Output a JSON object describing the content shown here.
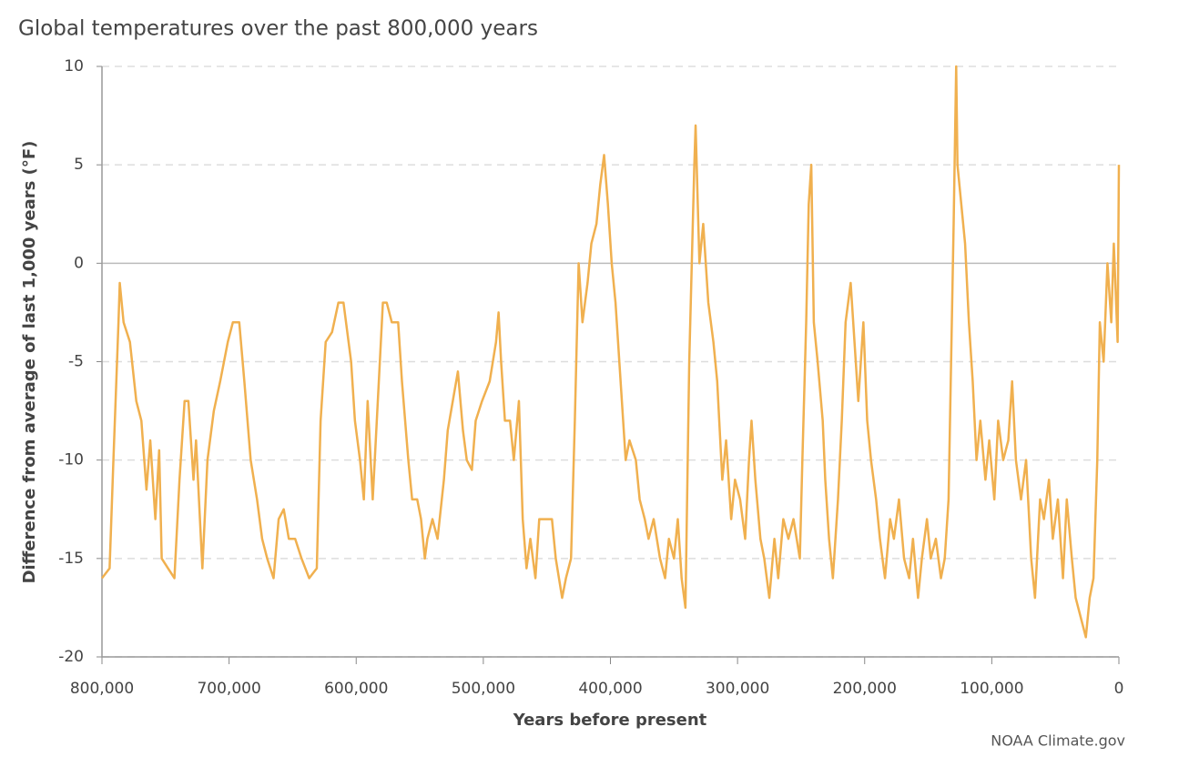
{
  "chart_data": {
    "type": "line",
    "title": "Global temperatures over the past 800,000 years",
    "x_label": "Years before present",
    "y_label": "Difference from average of last 1,000 years (°F)",
    "source": "NOAA Climate.gov",
    "color": "#f0b04f",
    "grid": true,
    "xlim": [
      800000,
      0
    ],
    "ylim": [
      10,
      -20
    ],
    "xticks": [
      {
        "value": 800000,
        "label": "800,000"
      },
      {
        "value": 700000,
        "label": "700,000"
      },
      {
        "value": 600000,
        "label": "600,000"
      },
      {
        "value": 500000,
        "label": "500,000"
      },
      {
        "value": 400000,
        "label": "400,000"
      },
      {
        "value": 300000,
        "label": "300,000"
      },
      {
        "value": 200000,
        "label": "200,000"
      },
      {
        "value": 100000,
        "label": "100,000"
      },
      0
    ],
    "yticks": [
      10,
      5,
      0,
      -5,
      -10,
      -15,
      -20
    ],
    "x": [
      800000,
      794000,
      791000,
      787000,
      786000,
      783000,
      778000,
      773000,
      769000,
      765000,
      762000,
      758000,
      755000,
      753000,
      748000,
      743000,
      739000,
      735000,
      732000,
      728000,
      726000,
      721000,
      717000,
      712000,
      707000,
      701000,
      697000,
      692000,
      688000,
      683000,
      678000,
      674000,
      670000,
      665000,
      661000,
      657000,
      653000,
      648000,
      643000,
      637000,
      631000,
      628000,
      624000,
      619000,
      614000,
      610000,
      604000,
      601000,
      597000,
      594000,
      591000,
      587000,
      583000,
      579000,
      576000,
      572000,
      567000,
      564000,
      559000,
      556000,
      552000,
      549000,
      546000,
      544000,
      540000,
      536000,
      531000,
      528000,
      524000,
      520000,
      516000,
      513000,
      509000,
      506000,
      501000,
      495000,
      490000,
      488000,
      486000,
      483000,
      479000,
      476000,
      472000,
      469000,
      466000,
      463000,
      459000,
      456000,
      450000,
      446000,
      443000,
      438000,
      435000,
      431000,
      428000,
      425000,
      422000,
      418000,
      415000,
      411000,
      408000,
      405000,
      402000,
      399000,
      396000,
      393000,
      390000,
      388000,
      385000,
      380000,
      377000,
      373000,
      370000,
      366000,
      361000,
      357000,
      354000,
      350000,
      347000,
      344000,
      341000,
      338000,
      334000,
      333000,
      330000,
      327000,
      323000,
      319000,
      316000,
      312000,
      309000,
      305000,
      302000,
      298000,
      294000,
      291000,
      289000,
      286000,
      282000,
      279000,
      275000,
      271000,
      268000,
      264000,
      260000,
      256000,
      251000,
      249000,
      246000,
      244000,
      242000,
      240000,
      237000,
      233000,
      231000,
      228000,
      225000,
      221000,
      218000,
      215000,
      211000,
      208000,
      205000,
      201000,
      198000,
      195000,
      191000,
      188000,
      184000,
      180000,
      177000,
      173000,
      169000,
      165000,
      162000,
      158000,
      155000,
      151000,
      148000,
      144000,
      140000,
      137000,
      134000,
      132000,
      130000,
      128000,
      127000,
      124000,
      121000,
      118000,
      115000,
      112000,
      109000,
      105000,
      102000,
      98000,
      95000,
      91000,
      87000,
      84000,
      81000,
      77000,
      73000,
      69000,
      66000,
      62000,
      59000,
      55000,
      52000,
      48000,
      44000,
      41000,
      37000,
      34000,
      30000,
      26000,
      23000,
      20000,
      17000,
      15000,
      12000,
      9000,
      6000,
      4000,
      1000,
      0
    ],
    "values": [
      -16,
      -15.5,
      -10,
      -3,
      -1,
      -3,
      -4,
      -7,
      -8,
      -11.5,
      -9,
      -13,
      -9.5,
      -15,
      -15.5,
      -16,
      -11,
      -7,
      -7,
      -11,
      -9,
      -15.5,
      -10,
      -7.5,
      -6,
      -4,
      -3,
      -3,
      -6,
      -10,
      -12,
      -14,
      -15,
      -16,
      -13,
      -12.5,
      -14,
      -14,
      -15,
      -16,
      -15.5,
      -8,
      -4,
      -3.5,
      -2,
      -2,
      -5,
      -8,
      -10,
      -12,
      -7,
      -12,
      -7,
      -2,
      -2,
      -3,
      -3,
      -6,
      -10,
      -12,
      -12,
      -13,
      -15,
      -14,
      -13,
      -14,
      -11,
      -8.5,
      -7,
      -5.5,
      -8.5,
      -10,
      -10.5,
      -8,
      -7,
      -6,
      -4,
      -2.5,
      -5,
      -8,
      -8,
      -10,
      -7,
      -13,
      -15.5,
      -14,
      -16,
      -13,
      -13,
      -13,
      -15,
      -17,
      -16,
      -15,
      -8,
      0,
      -3,
      -1,
      1,
      2,
      4,
      5.5,
      3,
      0,
      -2,
      -5,
      -8,
      -10,
      -9,
      -10,
      -12,
      -13,
      -14,
      -13,
      -15,
      -16,
      -14,
      -15,
      -13,
      -16,
      -17.5,
      -5,
      5,
      7,
      0,
      2,
      -2,
      -4,
      -6,
      -11,
      -9,
      -13,
      -11,
      -12,
      -14,
      -10,
      -8,
      -11,
      -14,
      -15,
      -17,
      -14,
      -16,
      -13,
      -14,
      -13,
      -15,
      -10,
      -3,
      3,
      5,
      -3,
      -5,
      -8,
      -11,
      -14,
      -16,
      -12,
      -8,
      -3,
      -1,
      -4,
      -7,
      -3,
      -8,
      -10,
      -12,
      -14,
      -16,
      -13,
      -14,
      -12,
      -15,
      -16,
      -14,
      -17,
      -15,
      -13,
      -15,
      -14,
      -16,
      -15,
      -12,
      -5,
      2,
      10,
      5,
      3,
      1,
      -3,
      -6,
      -10,
      -8,
      -11,
      -9,
      -12,
      -8,
      -10,
      -9,
      -6,
      -10,
      -12,
      -10,
      -15,
      -17,
      -12,
      -13,
      -11,
      -14,
      -12,
      -16,
      -12,
      -15,
      -17,
      -18,
      -19,
      -17,
      -16,
      -10,
      -3,
      -5,
      0,
      -3,
      1,
      -4,
      5
    ]
  }
}
